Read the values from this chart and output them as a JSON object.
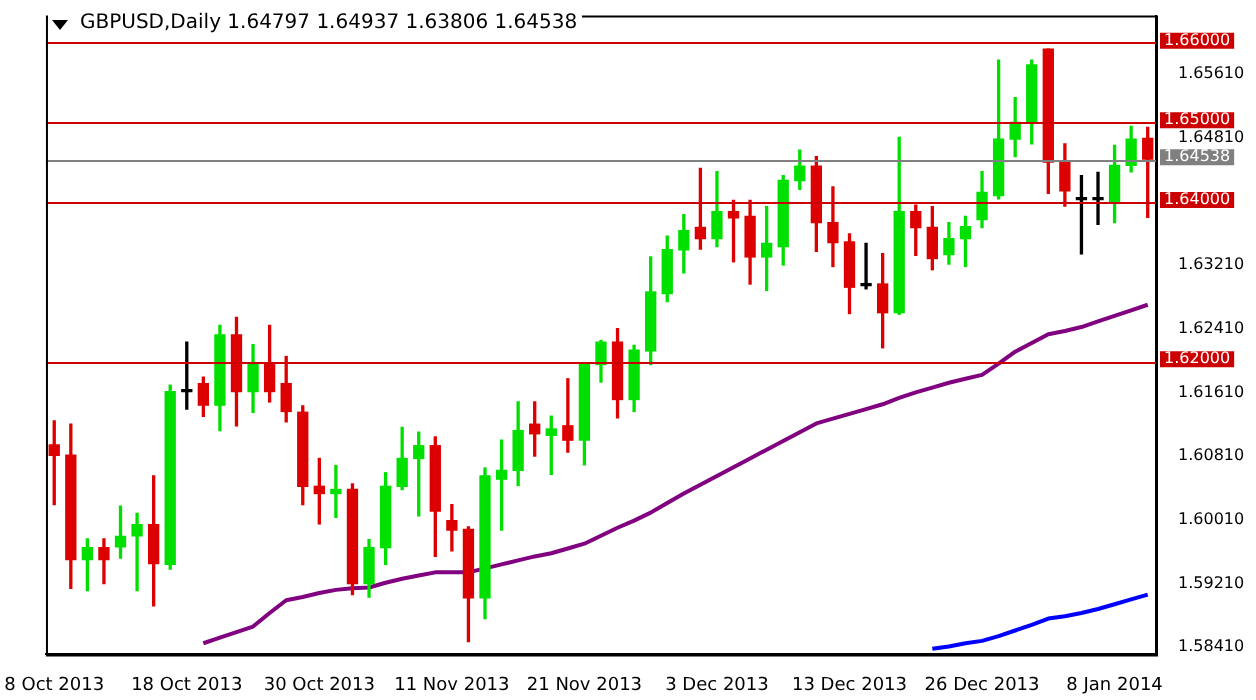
{
  "chart_data": {
    "type": "candlestick",
    "title": "GBPUSD,Daily 1.64797 1.64937 1.63806 1.64538",
    "legend": false,
    "grid": false,
    "categories": [
      "8 Oct 2013",
      null,
      null,
      null,
      null,
      null,
      null,
      null,
      "18 Oct 2013",
      null,
      null,
      null,
      null,
      null,
      null,
      null,
      "30 Oct 2013",
      null,
      null,
      null,
      null,
      null,
      null,
      null,
      "11 Nov 2013",
      null,
      null,
      null,
      null,
      null,
      null,
      null,
      "21 Nov 2013",
      null,
      null,
      null,
      null,
      null,
      null,
      null,
      "3 Dec 2013",
      null,
      null,
      null,
      null,
      null,
      null,
      null,
      "13 Dec 2013",
      null,
      null,
      null,
      null,
      null,
      null,
      null,
      "26 Dec 2013",
      null,
      null,
      null,
      null,
      null,
      null,
      null,
      "8 Jan 2014",
      null,
      null
    ],
    "ylim": [
      1.5832,
      1.6634
    ],
    "yticks": [
      {
        "value": 1.6561,
        "label": "1.65610"
      },
      {
        "value": 1.6481,
        "label": "1.64810"
      },
      {
        "value": 1.6321,
        "label": "1.63210"
      },
      {
        "value": 1.6241,
        "label": "1.62410"
      },
      {
        "value": 1.6161,
        "label": "1.61610"
      },
      {
        "value": 1.6081,
        "label": "1.60810"
      },
      {
        "value": 1.6001,
        "label": "1.60010"
      },
      {
        "value": 1.5921,
        "label": "1.59210"
      },
      {
        "value": 1.5841,
        "label": "1.58410"
      }
    ],
    "ref_lines": [
      {
        "axis": "y",
        "value": 1.66,
        "label": "1.66000",
        "color": "#cc0000"
      },
      {
        "axis": "y",
        "value": 1.65,
        "label": "1.65000",
        "color": "#cc0000"
      },
      {
        "axis": "y",
        "value": 1.64,
        "label": "1.64000",
        "color": "#cc0000"
      },
      {
        "axis": "y",
        "value": 1.62,
        "label": "1.62000",
        "color": "#cc0000"
      },
      {
        "axis": "y",
        "value": 1.64538,
        "label": "1.64538",
        "color": "#808080"
      }
    ],
    "series": [
      {
        "type": "line",
        "color": "#800080",
        "values": [
          null,
          null,
          null,
          null,
          null,
          null,
          null,
          null,
          null,
          1.5846,
          1.5853,
          1.586,
          1.5867,
          1.5884,
          1.59,
          1.5904,
          1.5909,
          1.5913,
          1.5915,
          1.5916,
          1.5922,
          1.5927,
          1.5931,
          1.5935,
          1.5935,
          1.5935,
          1.594,
          1.5945,
          1.595,
          1.5955,
          1.5959,
          1.5965,
          1.5971,
          1.5981,
          1.5991,
          1.6,
          1.601,
          1.6022,
          1.6034,
          1.6045,
          1.6056,
          1.6067,
          1.6078,
          1.6089,
          1.61,
          1.6111,
          1.6122,
          1.6128,
          1.6134,
          1.614,
          1.6146,
          1.6154,
          1.6161,
          1.6167,
          1.6173,
          1.6178,
          1.6183,
          1.6197,
          1.6212,
          1.6223,
          1.6234,
          1.6238,
          1.6243,
          1.625,
          1.6257,
          1.6264,
          1.6271
        ]
      },
      {
        "type": "line",
        "color": "#0000ff",
        "values": [
          null,
          null,
          null,
          null,
          null,
          null,
          null,
          null,
          null,
          null,
          null,
          null,
          null,
          null,
          null,
          null,
          null,
          null,
          null,
          null,
          null,
          null,
          null,
          null,
          null,
          null,
          null,
          null,
          null,
          null,
          null,
          null,
          null,
          null,
          null,
          null,
          null,
          null,
          null,
          null,
          null,
          null,
          null,
          null,
          null,
          null,
          null,
          null,
          null,
          null,
          null,
          null,
          null,
          1.5839,
          1.5842,
          1.5846,
          1.5849,
          1.5855,
          1.5862,
          1.5869,
          1.5877,
          1.588,
          1.5884,
          1.5889,
          1.5895,
          1.5901,
          1.5907
        ]
      },
      {
        "type": "candlestick",
        "colors": [
          "#dd0000",
          "#dd0000",
          "#00e000",
          "#dd0000",
          "#00e000",
          "#00e000",
          "#dd0000",
          "#00e000",
          "#000000",
          "#dd0000",
          "#00e000",
          "#dd0000",
          "#00e000",
          "#dd0000",
          "#dd0000",
          "#dd0000",
          "#dd0000",
          "#00e000",
          "#dd0000",
          "#00e000",
          "#00e000",
          "#00e000",
          "#00e000",
          "#dd0000",
          "#dd0000",
          "#dd0000",
          "#00e000",
          "#00e000",
          "#00e000",
          "#dd0000",
          "#00e000",
          "#dd0000",
          "#00e000",
          "#00e000",
          "#dd0000",
          "#00e000",
          "#00e000",
          "#00e000",
          "#00e000",
          "#dd0000",
          "#00e000",
          "#dd0000",
          "#dd0000",
          "#00e000",
          "#00e000",
          "#00e000",
          "#dd0000",
          "#dd0000",
          "#dd0000",
          "#000000",
          "#dd0000",
          "#00e000",
          "#dd0000",
          "#dd0000",
          "#00e000",
          "#00e000",
          "#00e000",
          "#00e000",
          "#00e000",
          "#00e000",
          "#dd0000",
          "#dd0000",
          "#000000",
          "#000000",
          "#00e000",
          "#00e000",
          "#dd0000"
        ],
        "ohlc": [
          [
            1.6095,
            1.6125,
            1.602,
            1.6082
          ],
          [
            1.6082,
            1.6121,
            1.5915,
            1.5951
          ],
          [
            1.5951,
            1.5977,
            1.5912,
            1.5966
          ],
          [
            1.5966,
            1.5977,
            1.5921,
            1.5951
          ],
          [
            1.5967,
            1.6018,
            1.5953,
            1.598
          ],
          [
            1.5981,
            1.6009,
            1.5912,
            1.5995
          ],
          [
            1.5995,
            1.6056,
            1.5893,
            1.5946
          ],
          [
            1.5945,
            1.617,
            1.5939,
            1.6162
          ],
          [
            1.6162,
            1.6224,
            1.614,
            1.6162
          ],
          [
            1.6172,
            1.618,
            1.6131,
            1.6145
          ],
          [
            1.6145,
            1.6245,
            1.6113,
            1.6233
          ],
          [
            1.6233,
            1.6255,
            1.6119,
            1.6162
          ],
          [
            1.6162,
            1.6221,
            1.6136,
            1.6198
          ],
          [
            1.6198,
            1.6245,
            1.6149,
            1.6162
          ],
          [
            1.6172,
            1.6206,
            1.6124,
            1.6137
          ],
          [
            1.6136,
            1.6144,
            1.602,
            1.6043
          ],
          [
            1.6043,
            1.6078,
            1.5996,
            1.6034
          ],
          [
            1.6034,
            1.6069,
            1.6004,
            1.6039
          ],
          [
            1.6039,
            1.6046,
            1.5907,
            1.5921
          ],
          [
            1.5921,
            1.5976,
            1.5904,
            1.5966
          ],
          [
            1.5966,
            1.606,
            1.5945,
            1.6043
          ],
          [
            1.6043,
            1.6117,
            1.6039,
            1.6078
          ],
          [
            1.6078,
            1.6111,
            1.6006,
            1.6094
          ],
          [
            1.6094,
            1.6105,
            1.5955,
            1.6012
          ],
          [
            1.6,
            1.602,
            1.5962,
            1.5988
          ],
          [
            1.5989,
            1.5992,
            1.5848,
            1.5903
          ],
          [
            1.5903,
            1.6066,
            1.5877,
            1.6056
          ],
          [
            1.6052,
            1.6101,
            1.5988,
            1.6063
          ],
          [
            1.6063,
            1.6149,
            1.6044,
            1.6113
          ],
          [
            1.6121,
            1.6149,
            1.6081,
            1.6109
          ],
          [
            1.6107,
            1.6131,
            1.6058,
            1.6115
          ],
          [
            1.6119,
            1.6178,
            1.6086,
            1.6101
          ],
          [
            1.6101,
            1.6198,
            1.607,
            1.6196
          ],
          [
            1.6196,
            1.6226,
            1.6174,
            1.6224
          ],
          [
            1.6224,
            1.6241,
            1.6129,
            1.6152
          ],
          [
            1.6152,
            1.622,
            1.6137,
            1.6214
          ],
          [
            1.6213,
            1.6331,
            1.6196,
            1.6287
          ],
          [
            1.6285,
            1.6357,
            1.6275,
            1.634
          ],
          [
            1.634,
            1.6384,
            1.6311,
            1.6364
          ],
          [
            1.6368,
            1.6442,
            1.6341,
            1.6354
          ],
          [
            1.6354,
            1.6438,
            1.6344,
            1.6388
          ],
          [
            1.6388,
            1.6402,
            1.6325,
            1.638
          ],
          [
            1.6382,
            1.6402,
            1.6297,
            1.6331
          ],
          [
            1.6331,
            1.6394,
            1.6289,
            1.6348
          ],
          [
            1.6344,
            1.6433,
            1.6321,
            1.6427
          ],
          [
            1.6427,
            1.6465,
            1.6416,
            1.6445
          ],
          [
            1.6445,
            1.6457,
            1.6338,
            1.6374
          ],
          [
            1.6374,
            1.6419,
            1.6319,
            1.6349
          ],
          [
            1.635,
            1.636,
            1.626,
            1.6293
          ],
          [
            1.6295,
            1.6348,
            1.6291,
            1.6295
          ],
          [
            1.6297,
            1.6335,
            1.6217,
            1.6261
          ],
          [
            1.6261,
            1.6481,
            1.6259,
            1.6388
          ],
          [
            1.6388,
            1.6396,
            1.6333,
            1.6368
          ],
          [
            1.6368,
            1.6394,
            1.6315,
            1.6329
          ],
          [
            1.6334,
            1.6374,
            1.6322,
            1.6354
          ],
          [
            1.6354,
            1.6382,
            1.6319,
            1.6369
          ],
          [
            1.6378,
            1.6438,
            1.6368,
            1.6412
          ],
          [
            1.6408,
            1.6578,
            1.6404,
            1.6479
          ],
          [
            1.6479,
            1.6531,
            1.6457,
            1.65
          ],
          [
            1.65,
            1.6578,
            1.6473,
            1.6572
          ],
          [
            1.6592,
            1.6592,
            1.6411,
            1.645
          ],
          [
            1.6451,
            1.6473,
            1.6395,
            1.6414
          ],
          [
            1.6403,
            1.6433,
            1.6335,
            1.6403
          ],
          [
            1.6403,
            1.6437,
            1.6372,
            1.6403
          ],
          [
            1.64,
            1.6471,
            1.6374,
            1.6446
          ],
          [
            1.6446,
            1.6495,
            1.6438,
            1.6479
          ],
          [
            1.64797,
            1.64937,
            1.63806,
            1.64538
          ]
        ]
      }
    ]
  }
}
